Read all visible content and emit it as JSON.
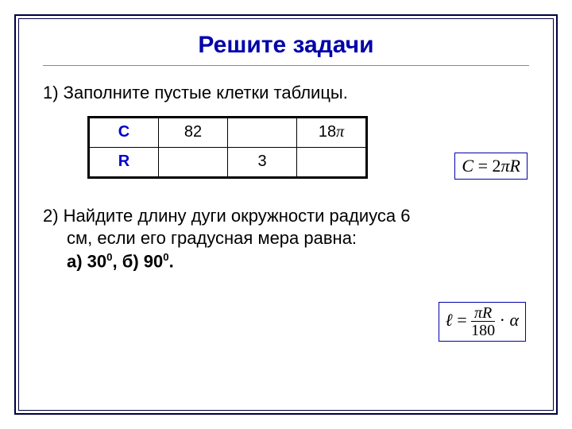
{
  "title": "Решите задачи",
  "task1": "1) Заполните пустые клетки таблицы.",
  "table": {
    "row1": {
      "h": "C",
      "c1": "82",
      "c2": "",
      "c3_text": "18",
      "c3_pi": "π"
    },
    "row2": {
      "h": "R",
      "c1": "",
      "c2": "3",
      "c3": ""
    }
  },
  "formula1": {
    "lhs": "C",
    "eq": " = ",
    "coef": "2",
    "pi": "π",
    "rhs": "R"
  },
  "task2_line1": "2) Найдите длину дуги окружности радиуса 6",
  "task2_line2": "см, если его градусная мера равна:",
  "task2_line3_a": "а) 30",
  "task2_line3_mid": ", б) 90",
  "task2_line3_end": ".",
  "deg": "0",
  "formula2": {
    "lhs": "ℓ",
    "eq": " = ",
    "num_pi": "π",
    "num_r": "R",
    "den": "180",
    "dot": " · ",
    "alpha": "α"
  },
  "colors": {
    "title": "#0000aa",
    "frame": "#000040",
    "header_text": "#0000cc",
    "formula_border": "#0000aa"
  }
}
